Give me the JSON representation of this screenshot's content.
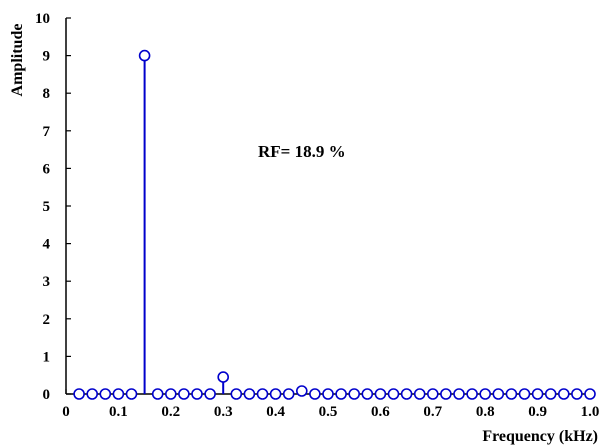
{
  "chart_data": {
    "type": "stem",
    "title": "",
    "xlabel": "Frequency (kHz)",
    "ylabel": "Amplitude",
    "xlim": [
      0,
      1.0
    ],
    "ylim": [
      0,
      10
    ],
    "x_ticks": [
      "0",
      "0.1",
      "0.2",
      "0.3",
      "0.4",
      "0.5",
      "0.6",
      "0.7",
      "0.8",
      "0.9",
      "1.0"
    ],
    "y_ticks": [
      "0",
      "1",
      "2",
      "3",
      "4",
      "5",
      "6",
      "7",
      "8",
      "9",
      "10"
    ],
    "grid": false,
    "annotation": "RF= 18.9 %",
    "series_color": "#0000cc",
    "points": [
      {
        "x": 0.025,
        "y": 0
      },
      {
        "x": 0.05,
        "y": 0
      },
      {
        "x": 0.075,
        "y": 0
      },
      {
        "x": 0.1,
        "y": 0
      },
      {
        "x": 0.125,
        "y": 0
      },
      {
        "x": 0.15,
        "y": 9.0
      },
      {
        "x": 0.175,
        "y": 0
      },
      {
        "x": 0.2,
        "y": 0
      },
      {
        "x": 0.225,
        "y": 0
      },
      {
        "x": 0.25,
        "y": 0
      },
      {
        "x": 0.275,
        "y": 0
      },
      {
        "x": 0.3,
        "y": 0.45
      },
      {
        "x": 0.325,
        "y": 0
      },
      {
        "x": 0.35,
        "y": 0
      },
      {
        "x": 0.375,
        "y": 0
      },
      {
        "x": 0.4,
        "y": 0
      },
      {
        "x": 0.425,
        "y": 0
      },
      {
        "x": 0.45,
        "y": 0.08
      },
      {
        "x": 0.475,
        "y": 0
      },
      {
        "x": 0.5,
        "y": 0
      },
      {
        "x": 0.525,
        "y": 0
      },
      {
        "x": 0.55,
        "y": 0
      },
      {
        "x": 0.575,
        "y": 0
      },
      {
        "x": 0.6,
        "y": 0
      },
      {
        "x": 0.625,
        "y": 0
      },
      {
        "x": 0.65,
        "y": 0
      },
      {
        "x": 0.675,
        "y": 0
      },
      {
        "x": 0.7,
        "y": 0
      },
      {
        "x": 0.725,
        "y": 0
      },
      {
        "x": 0.75,
        "y": 0
      },
      {
        "x": 0.775,
        "y": 0
      },
      {
        "x": 0.8,
        "y": 0
      },
      {
        "x": 0.825,
        "y": 0
      },
      {
        "x": 0.85,
        "y": 0
      },
      {
        "x": 0.875,
        "y": 0
      },
      {
        "x": 0.9,
        "y": 0
      },
      {
        "x": 0.925,
        "y": 0
      },
      {
        "x": 0.95,
        "y": 0
      },
      {
        "x": 0.975,
        "y": 0
      },
      {
        "x": 1.0,
        "y": 0
      }
    ]
  }
}
